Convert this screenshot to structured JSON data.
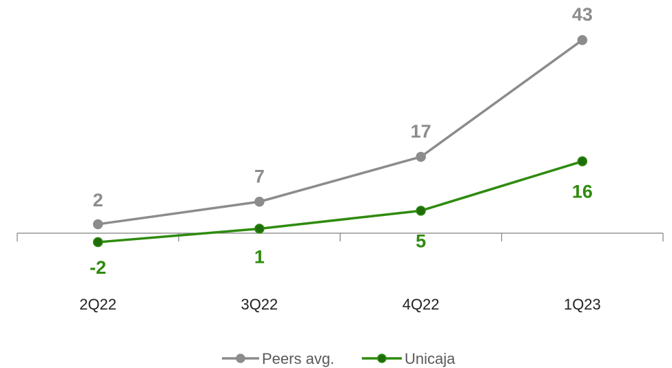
{
  "chart_data": {
    "type": "line",
    "categories": [
      "2Q22",
      "3Q22",
      "4Q22",
      "1Q23"
    ],
    "series": [
      {
        "name": "Peers avg.",
        "values": [
          2,
          7,
          17,
          43
        ],
        "labels": [
          "2",
          "7",
          "17",
          "43"
        ],
        "color": "#8c8c8c",
        "marker_color": "#8c8c8c"
      },
      {
        "name": "Unicaja",
        "values": [
          -2,
          1,
          5,
          16
        ],
        "labels": [
          "-2",
          "1",
          "5",
          "16"
        ],
        "color": "#2e8b0e",
        "marker_color": "#1f6e0a"
      }
    ],
    "title": "",
    "xlabel": "",
    "ylabel": "",
    "ylim": [
      -5,
      45
    ],
    "grid": false,
    "legend": "bottom-center"
  }
}
